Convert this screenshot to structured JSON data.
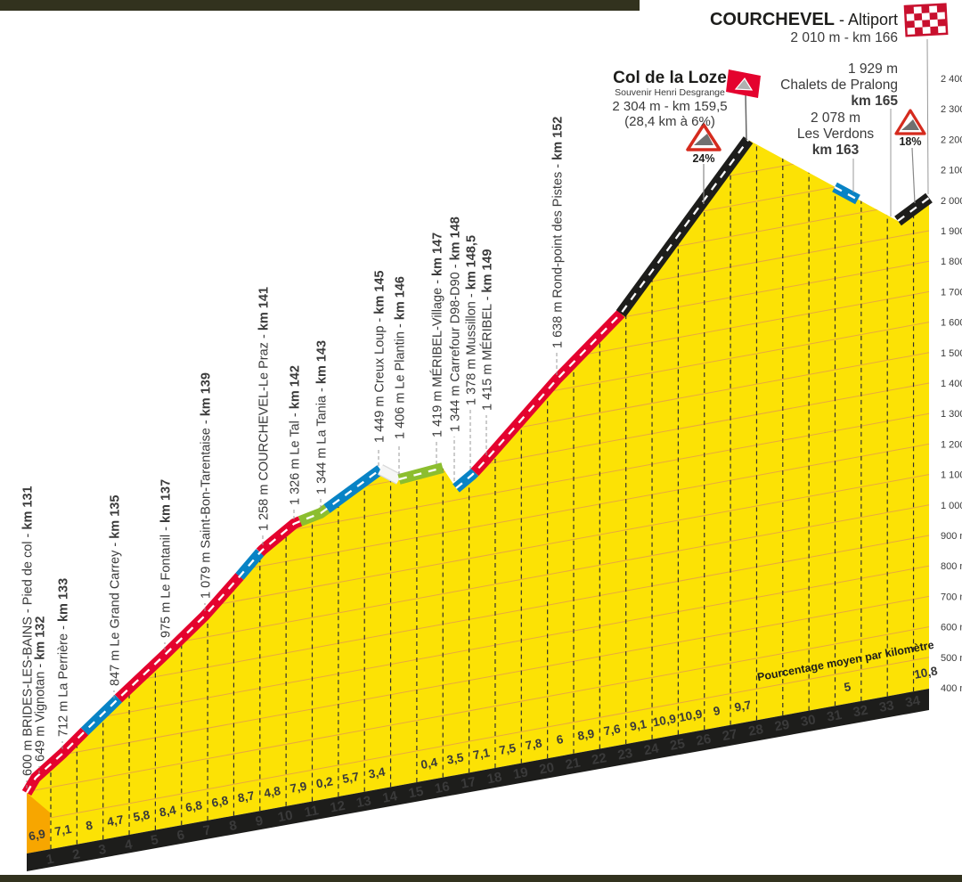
{
  "chart_data": {
    "type": "area",
    "ylim_m": [
      400,
      2400
    ],
    "x_axis_note": "km marks 1-34 along the climb",
    "finish": {
      "name": "COURCHEVEL",
      "suffix": " - Altiport",
      "detail": "2 010 m - km 166"
    },
    "summit": {
      "name": "Col de la Loze",
      "subtitle": "Souvenir Henri Desgrange",
      "detail": "2 304 m - km 159,5",
      "detail2": "(28,4 km à 6%)"
    },
    "pralong": {
      "elevation": "1 929 m",
      "name": "Chalets de Pralong",
      "km": "km 165"
    },
    "verdons": {
      "elevation": "2 078 m",
      "name": "Les Verdons",
      "km": "km 163"
    },
    "warnings": {
      "first": "24%",
      "second": "18%"
    },
    "avg_caption": "Pourcentage moyen par kilomètre",
    "elevation_ticks": [
      "2 400 m",
      "2 300 m",
      "2 200 m",
      "2 100 m",
      "2 000 m",
      "1 900 m",
      "1 800 m",
      "1 700 m",
      "1 600 m",
      "1 500 m",
      "1 400 m",
      "1 300 m",
      "1 200 m",
      "1 100 m",
      "1 000 m",
      "900 m",
      "800 m",
      "700 m",
      "600 m",
      "500 m",
      "400 m"
    ],
    "km_ticks": [
      "1",
      "2",
      "3",
      "4",
      "5",
      "6",
      "7",
      "8",
      "9",
      "10",
      "11",
      "12",
      "13",
      "14",
      "15",
      "16",
      "17",
      "18",
      "19",
      "20",
      "21",
      "22",
      "23",
      "24",
      "25",
      "26",
      "27",
      "28",
      "29",
      "30",
      "31",
      "32",
      "33",
      "34"
    ],
    "gradients_pct_per_km": [
      {
        "after_km": 1,
        "value": "6,9"
      },
      {
        "after_km": 2,
        "value": "7,1"
      },
      {
        "after_km": 3,
        "value": "8"
      },
      {
        "after_km": 4,
        "value": "4,7"
      },
      {
        "after_km": 5,
        "value": "5,8"
      },
      {
        "after_km": 6,
        "value": "8,4"
      },
      {
        "after_km": 7,
        "value": "6,8"
      },
      {
        "after_km": 8,
        "value": "6,8"
      },
      {
        "after_km": 9,
        "value": "8,7"
      },
      {
        "after_km": 10,
        "value": "4,8"
      },
      {
        "after_km": 11,
        "value": "7,9"
      },
      {
        "after_km": 12,
        "value": "0,2"
      },
      {
        "after_km": 13,
        "value": "5,7"
      },
      {
        "after_km": 14,
        "value": "3,4"
      },
      {
        "after_km": 16,
        "value": "0,4"
      },
      {
        "after_km": 17,
        "value": "3,5"
      },
      {
        "after_km": 18,
        "value": "7,1"
      },
      {
        "after_km": 19,
        "value": "7,5"
      },
      {
        "after_km": 20,
        "value": "7,8"
      },
      {
        "after_km": 21,
        "value": "6"
      },
      {
        "after_km": 22,
        "value": "8,9"
      },
      {
        "after_km": 23,
        "value": "7,6"
      },
      {
        "after_km": 24,
        "value": "9,1"
      },
      {
        "after_km": 25,
        "value": "10,9"
      },
      {
        "after_km": 26,
        "value": "10,9"
      },
      {
        "after_km": 27,
        "value": "9"
      },
      {
        "after_km": 28,
        "value": "9,7"
      },
      {
        "after_km": 32,
        "value": "5"
      },
      {
        "after_km": 35,
        "value": "10,8"
      }
    ],
    "waypoints": [
      {
        "label": "600 m BRIDES-LES-BAINS - Pied de col - ",
        "km": "km 131"
      },
      {
        "label": "649 m Vignotan - ",
        "km": "km 132"
      },
      {
        "label": "712 m La Perrière - ",
        "km": "km 133"
      },
      {
        "label": "847 m Le Grand Carrey - ",
        "km": "km 135"
      },
      {
        "label": "975 m Le Fontanil - ",
        "km": "km 137"
      },
      {
        "label": "1 079 m Saint-Bon-Tarentaise - ",
        "km": "km 139"
      },
      {
        "label": "1 258 m COURCHEVEL-Le Praz - ",
        "km": "km 141"
      },
      {
        "label": "1 326 m Le Tal - ",
        "km": "km 142"
      },
      {
        "label": "1 344 m La Tania - ",
        "km": "km 143"
      },
      {
        "label": "1 449 m Creux Loup - ",
        "km": "km 145"
      },
      {
        "label": "1 406 m Le Plantin - ",
        "km": "km 146"
      },
      {
        "label": "1 419 m MÉRIBEL-Village - ",
        "km": "km 147"
      },
      {
        "label": "1 344 m Carrefour D98-D90 - ",
        "km": "km 148"
      },
      {
        "label": "1 378 m Mussillon - ",
        "km": "km 148,5"
      },
      {
        "label": "1 415 m MÉRIBEL - ",
        "km": "km 149"
      },
      {
        "label": "1 638 m Rond-point des Pistes - ",
        "km": "km 152"
      }
    ]
  },
  "colors": {
    "jersey_yellow": "#FCE205",
    "road_red": "#E4032E",
    "road_blue": "#0883C5",
    "road_green": "#8CBE2F",
    "road_black": "#1D1D1B",
    "side_orange": "#F7A600",
    "frame_olive": "#32321E",
    "grid_orange": "#E8A93F",
    "checker_red": "#C8102E",
    "text_dark": "#3A3A3A",
    "km_number_yellow": "#FFE600"
  }
}
